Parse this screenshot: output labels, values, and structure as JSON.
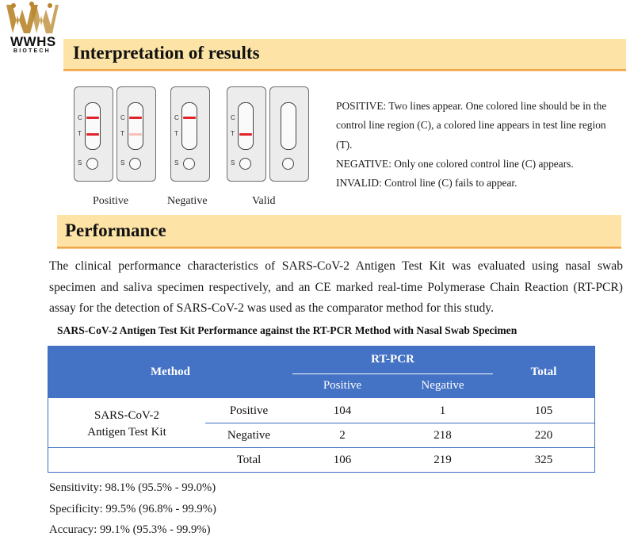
{
  "logo": {
    "text": "WWHS",
    "sub": "BIOTECH"
  },
  "section1": {
    "title": "Interpretation of  results"
  },
  "illustration": {
    "marker_c": "C",
    "marker_t": "T",
    "marker_s": "S",
    "captions": [
      "Positive",
      "Negative",
      "Valid"
    ]
  },
  "interpretation": [
    "POSITIVE: Two lines appear. One colored line should be in the control line region (C), a colored line appears in test line region (T).",
    "NEGATIVE: Only one colored control line (C) appears. INVALID: Control line (C) fails to appear."
  ],
  "section2": {
    "title": "Performance"
  },
  "performance_paragraph": "The clinical performance characteristics of SARS-CoV-2 Antigen Test Kit was evaluated using nasal swab specimen and saliva specimen respectively, and an CE marked real-time Polymerase Chain Reaction (RT-PCR) assay for the detection of SARS-CoV-2 was used as the comparator method for this study.",
  "table": {
    "title": "SARS-CoV-2 Antigen Test Kit Performance against the RT-PCR Method with Nasal Swab Specimen",
    "header_method": "Method",
    "header_group": "RT-PCR",
    "header_positive": "Positive",
    "header_negative": "Negative",
    "header_total": "Total",
    "row_group_label_line1": "SARS-CoV-2",
    "row_group_label_line2": "Antigen Test Kit",
    "rows": [
      {
        "label": "Positive",
        "positive": "104",
        "negative": "1",
        "total": "105"
      },
      {
        "label": "Negative",
        "positive": "2",
        "negative": "218",
        "total": "220"
      },
      {
        "label": "Total",
        "positive": "106",
        "negative": "219",
        "total": "325"
      }
    ]
  },
  "stats": {
    "sensitivity": "Sensitivity: 98.1% (95.5% - 99.0%)",
    "specificity": "Specificity: 99.5% (96.8% - 99.9%)",
    "accuracy": "Accuracy: 99.1% (95.3% - 99.9%)"
  },
  "colors": {
    "banner_fill": "#fde4a6",
    "banner_border": "#f0a44a",
    "table_header": "#4472c4",
    "line_red": "#e0242a"
  }
}
